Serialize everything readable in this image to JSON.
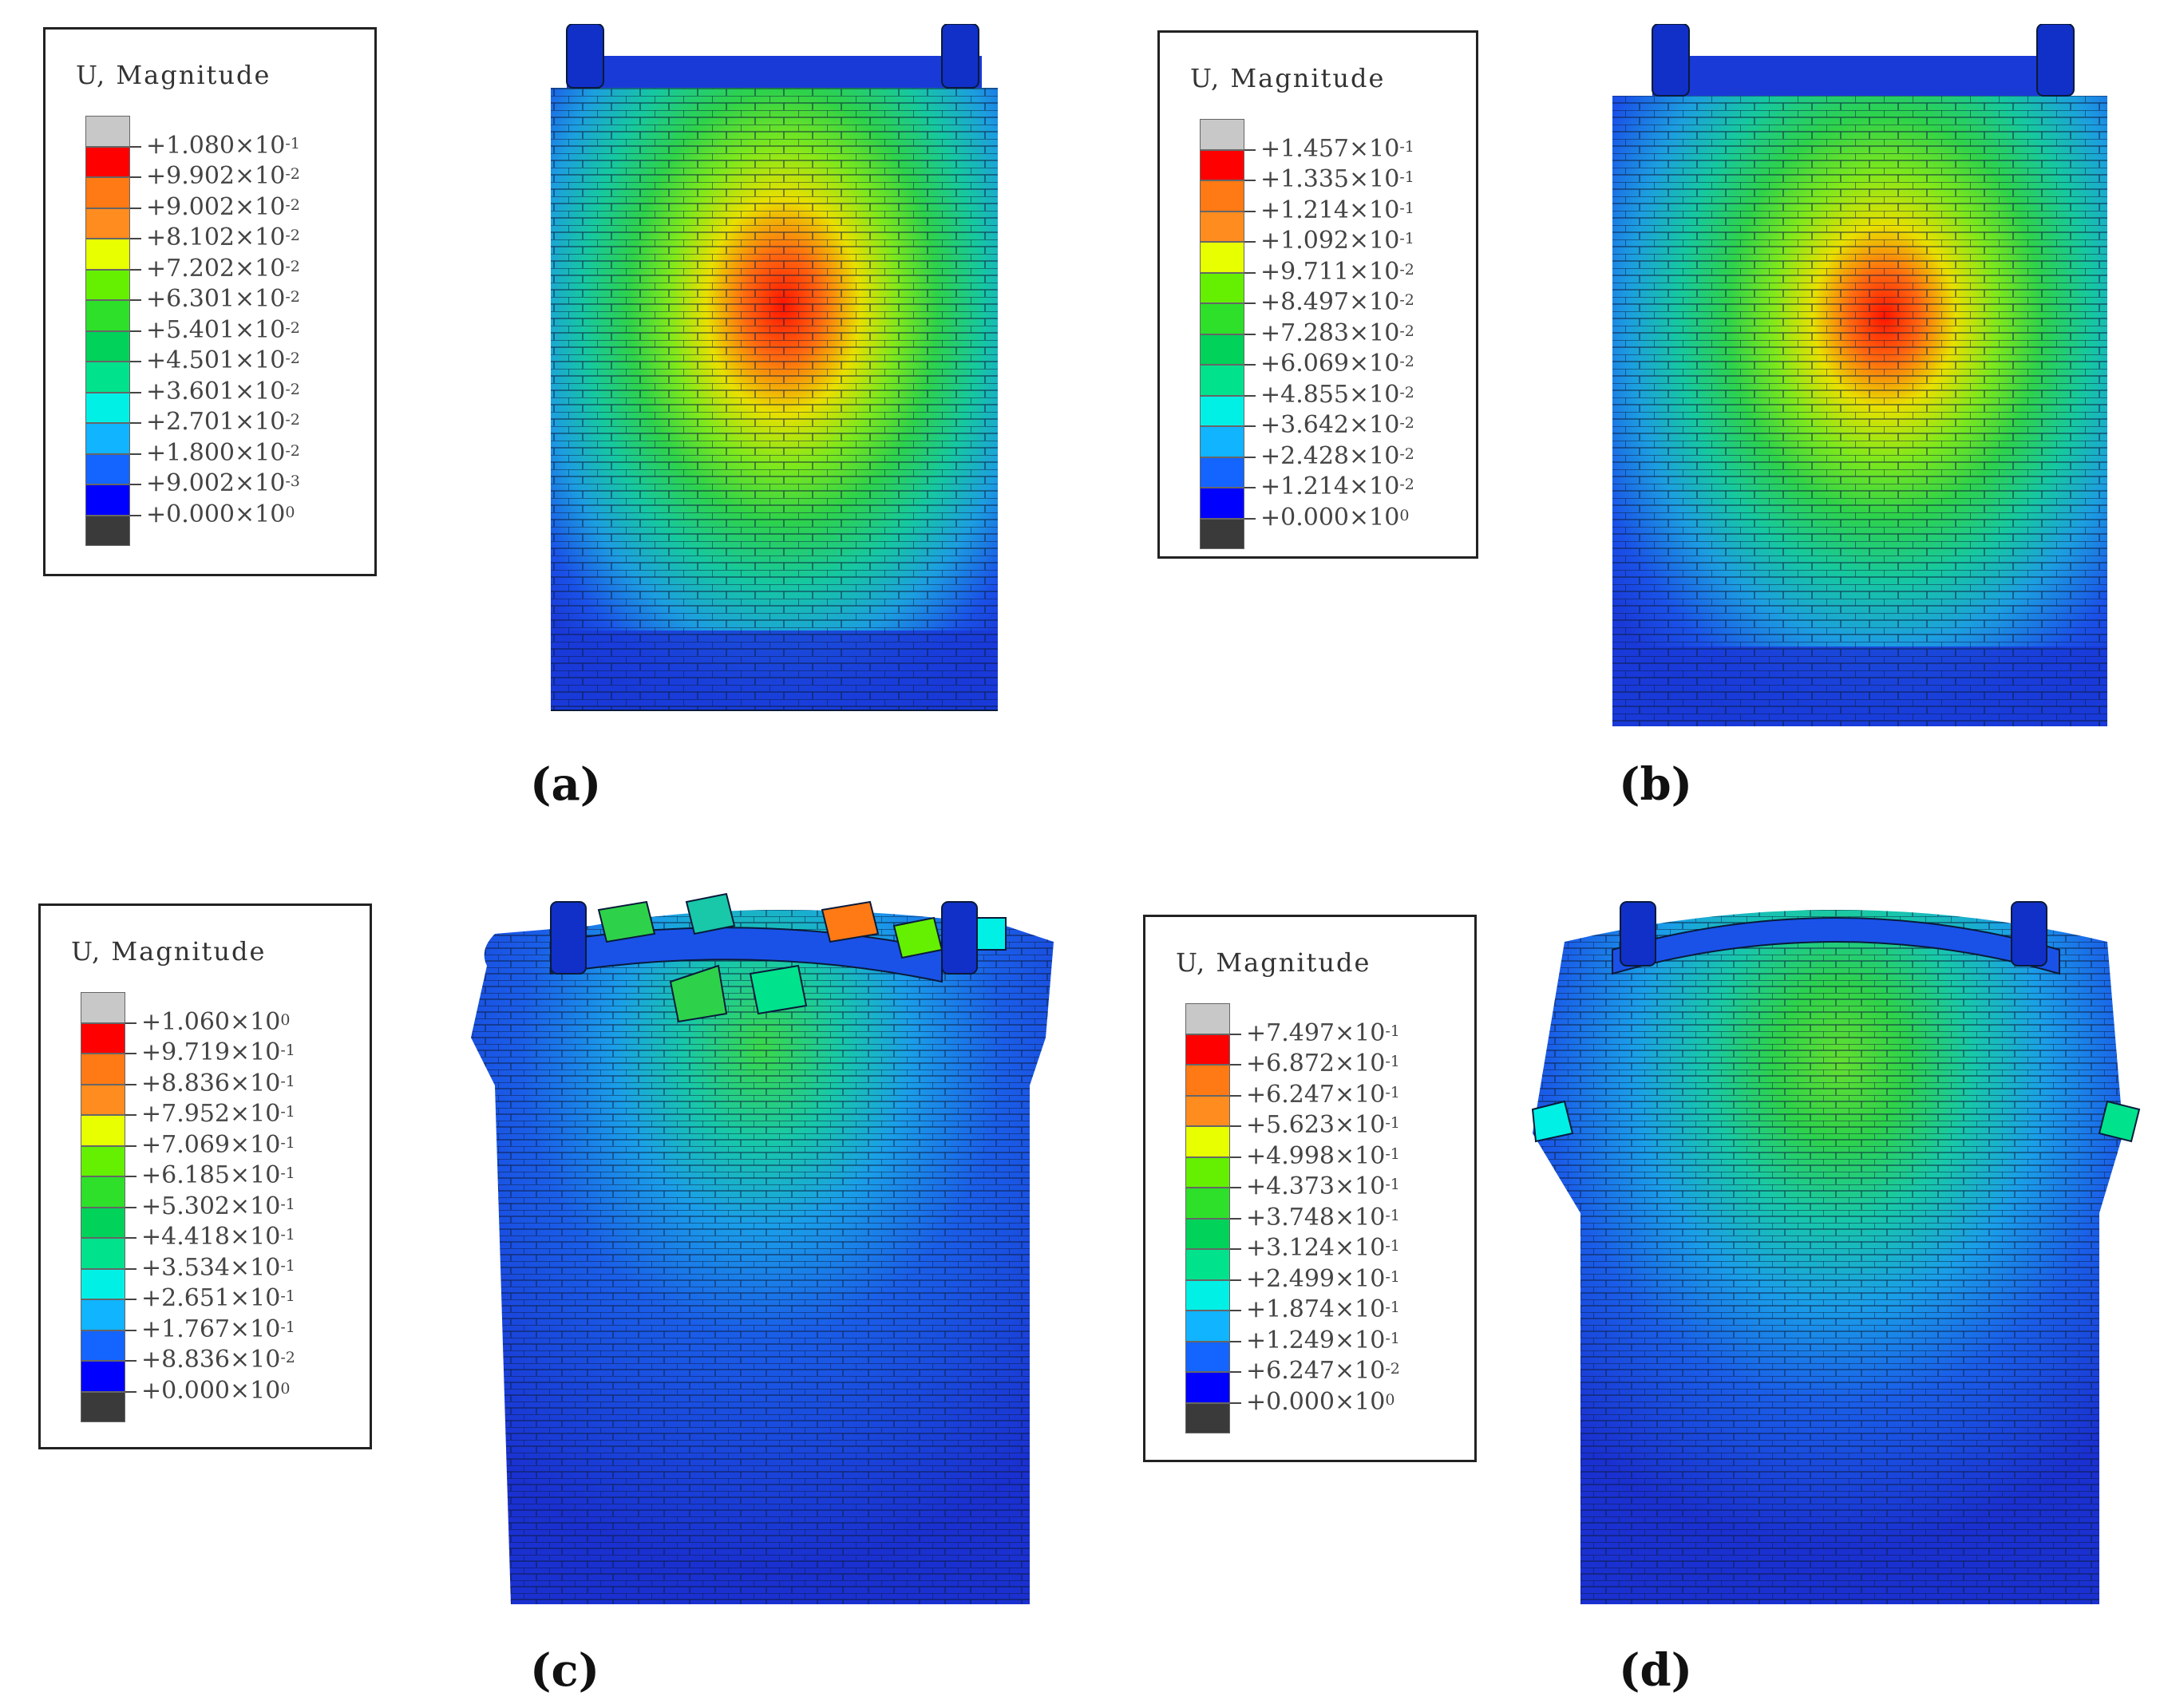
{
  "panels": [
    {
      "id": "a",
      "caption": "(a)",
      "legend": {
        "title": "U, Magnitude",
        "entries": [
          {
            "mant": "+1.080",
            "exp": "-1"
          },
          {
            "mant": "+9.902",
            "exp": "-2"
          },
          {
            "mant": "+9.002",
            "exp": "-2"
          },
          {
            "mant": "+8.102",
            "exp": "-2"
          },
          {
            "mant": "+7.202",
            "exp": "-2"
          },
          {
            "mant": "+6.301",
            "exp": "-2"
          },
          {
            "mant": "+5.401",
            "exp": "-2"
          },
          {
            "mant": "+4.501",
            "exp": "-2"
          },
          {
            "mant": "+3.601",
            "exp": "-2"
          },
          {
            "mant": "+2.701",
            "exp": "-2"
          },
          {
            "mant": "+1.800",
            "exp": "-2"
          },
          {
            "mant": "+9.002",
            "exp": "-3"
          },
          {
            "mant": "+0.000",
            "exp": "0"
          }
        ]
      }
    },
    {
      "id": "b",
      "caption": "(b)",
      "legend": {
        "title": "U, Magnitude",
        "entries": [
          {
            "mant": "+1.457",
            "exp": "-1"
          },
          {
            "mant": "+1.335",
            "exp": "-1"
          },
          {
            "mant": "+1.214",
            "exp": "-1"
          },
          {
            "mant": "+1.092",
            "exp": "-1"
          },
          {
            "mant": "+9.711",
            "exp": "-2"
          },
          {
            "mant": "+8.497",
            "exp": "-2"
          },
          {
            "mant": "+7.283",
            "exp": "-2"
          },
          {
            "mant": "+6.069",
            "exp": "-2"
          },
          {
            "mant": "+4.855",
            "exp": "-2"
          },
          {
            "mant": "+3.642",
            "exp": "-2"
          },
          {
            "mant": "+2.428",
            "exp": "-2"
          },
          {
            "mant": "+1.214",
            "exp": "-2"
          },
          {
            "mant": "+0.000",
            "exp": "0"
          }
        ]
      }
    },
    {
      "id": "c",
      "caption": "(c)",
      "legend": {
        "title": "U, Magnitude",
        "entries": [
          {
            "mant": "+1.060",
            "exp": "0"
          },
          {
            "mant": "+9.719",
            "exp": "-1"
          },
          {
            "mant": "+8.836",
            "exp": "-1"
          },
          {
            "mant": "+7.952",
            "exp": "-1"
          },
          {
            "mant": "+7.069",
            "exp": "-1"
          },
          {
            "mant": "+6.185",
            "exp": "-1"
          },
          {
            "mant": "+5.302",
            "exp": "-1"
          },
          {
            "mant": "+4.418",
            "exp": "-1"
          },
          {
            "mant": "+3.534",
            "exp": "-1"
          },
          {
            "mant": "+2.651",
            "exp": "-1"
          },
          {
            "mant": "+1.767",
            "exp": "-1"
          },
          {
            "mant": "+8.836",
            "exp": "-2"
          },
          {
            "mant": "+0.000",
            "exp": "0"
          }
        ]
      }
    },
    {
      "id": "d",
      "caption": "(d)",
      "legend": {
        "title": "U, Magnitude",
        "entries": [
          {
            "mant": "+7.497",
            "exp": "-1"
          },
          {
            "mant": "+6.872",
            "exp": "-1"
          },
          {
            "mant": "+6.247",
            "exp": "-1"
          },
          {
            "mant": "+5.623",
            "exp": "-1"
          },
          {
            "mant": "+4.998",
            "exp": "-1"
          },
          {
            "mant": "+4.373",
            "exp": "-1"
          },
          {
            "mant": "+3.748",
            "exp": "-1"
          },
          {
            "mant": "+3.124",
            "exp": "-1"
          },
          {
            "mant": "+2.499",
            "exp": "-1"
          },
          {
            "mant": "+1.874",
            "exp": "-1"
          },
          {
            "mant": "+1.249",
            "exp": "-1"
          },
          {
            "mant": "+6.247",
            "exp": "-2"
          },
          {
            "mant": "+0.000",
            "exp": "0"
          }
        ]
      }
    }
  ],
  "contour_colors": [
    "#c8c8c8",
    "#ff0000",
    "#ff7a14",
    "#ff8c1e",
    "#e8ff00",
    "#64f000",
    "#2ee02a",
    "#00d25a",
    "#00e28c",
    "#00f0e6",
    "#10b4ff",
    "#1464ff",
    "#0000ff",
    "#3a3a3a"
  ]
}
